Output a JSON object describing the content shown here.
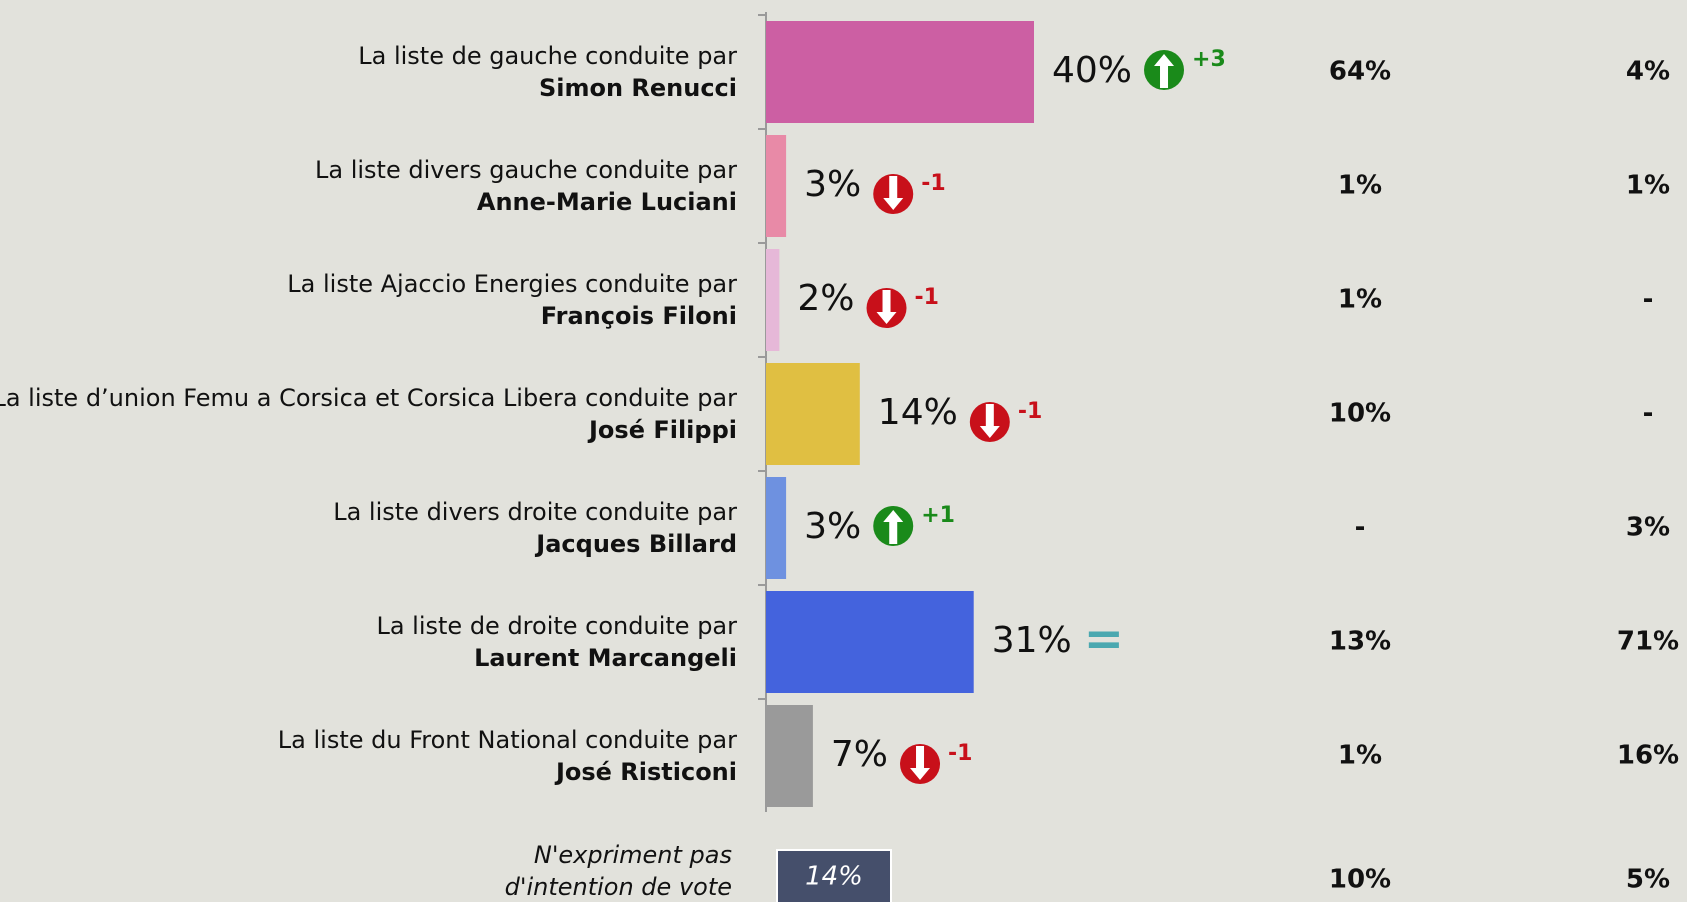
{
  "chart_data": {
    "type": "bar",
    "orientation": "horizontal",
    "category_prefixes": [
      "La liste de gauche conduite par",
      "La liste divers gauche conduite par",
      "La liste Ajaccio Energies conduite par",
      "La liste d’union Femu a Corsica et Corsica Libera conduite par",
      "La liste divers droite conduite par",
      "La liste de droite conduite par",
      "La liste du Front National conduite par"
    ],
    "categories": [
      "Simon Renucci",
      "Anne-Marie Luciani",
      "François Filoni",
      "José Filippi",
      "Jacques Billard",
      "Laurent Marcangeli",
      "José Risticoni"
    ],
    "values": [
      40,
      3,
      2,
      14,
      3,
      31,
      7
    ],
    "value_labels": [
      "40%",
      "3%",
      "2%",
      "14%",
      "3%",
      "31%",
      "7%"
    ],
    "colors": [
      "#cc5fa3",
      "#e88aa7",
      "#e6b8d8",
      "#e0bf42",
      "#6e91e0",
      "#4463dd",
      "#9a9a9a"
    ],
    "xlim": [
      0,
      100
    ],
    "changes": [
      3,
      -1,
      -1,
      -1,
      1,
      0,
      -1
    ],
    "change_labels": [
      "+3",
      "-1",
      "-1",
      "-1",
      "+1",
      "=",
      "-1"
    ],
    "column_1": [
      "64%",
      "1%",
      "1%",
      "10%",
      "-",
      "13%",
      "1%"
    ],
    "column_2": [
      "4%",
      "1%",
      "-",
      "-",
      "3%",
      "71%",
      "16%"
    ],
    "abstention": {
      "label_lines": [
        "N'expriment pas",
        "d'intention de vote"
      ],
      "value": 14,
      "value_label": "14%",
      "column_1": "10%",
      "column_2": "5%"
    }
  }
}
